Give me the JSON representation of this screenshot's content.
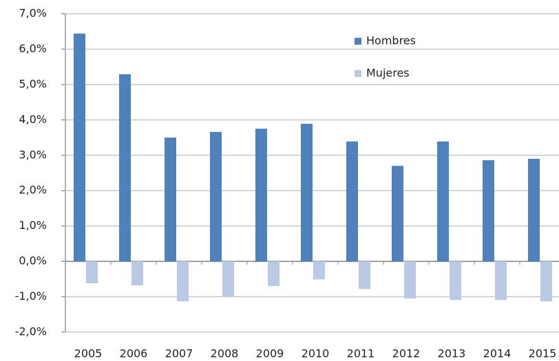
{
  "chart_data": {
    "type": "bar",
    "categories": [
      "2005",
      "2006",
      "2007",
      "2008",
      "2009",
      "2010",
      "2011",
      "2012",
      "2013",
      "2014",
      "2015"
    ],
    "series": [
      {
        "name": "Hombres",
        "color": "#4f81bd",
        "values": [
          6.44,
          5.29,
          3.5,
          3.66,
          3.75,
          3.89,
          3.39,
          2.7,
          3.39,
          2.86,
          2.9
        ]
      },
      {
        "name": "Mujeres",
        "color": "#b9c9e6",
        "values": [
          -0.62,
          -0.68,
          -1.13,
          -0.99,
          -0.7,
          -0.51,
          -0.78,
          -1.05,
          -1.09,
          -1.09,
          -1.13
        ]
      }
    ],
    "ylim": [
      -2,
      7
    ],
    "yticks": [
      {
        "value": -2,
        "label": "-2,0%"
      },
      {
        "value": -1,
        "label": "-1,0%"
      },
      {
        "value": 0,
        "label": "0,0%"
      },
      {
        "value": 1,
        "label": "1,0%"
      },
      {
        "value": 2,
        "label": "2,0%"
      },
      {
        "value": 3,
        "label": "3,0%"
      },
      {
        "value": 4,
        "label": "4,0%"
      },
      {
        "value": 5,
        "label": "5,0%"
      },
      {
        "value": 6,
        "label": "6,0%"
      },
      {
        "value": 7,
        "label": "7,0%"
      }
    ],
    "grid": true,
    "legend": "top-right"
  }
}
